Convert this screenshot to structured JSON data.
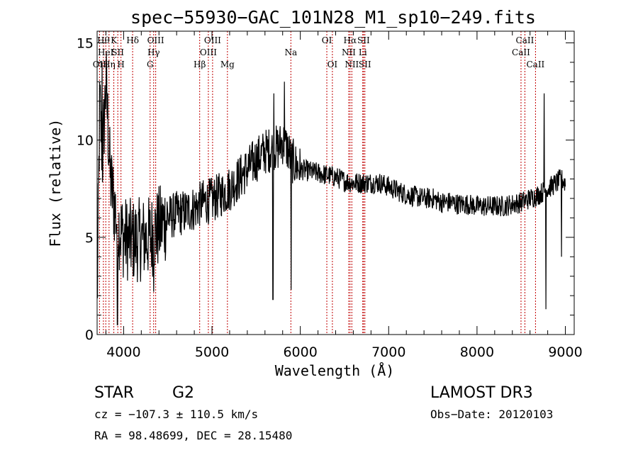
{
  "chart_data": {
    "type": "line",
    "title": "spec−55930−GAC_101N28_M1_sp10−249.fits",
    "xlabel": "Wavelength (Å)",
    "ylabel": "Flux (relative)",
    "xlim": [
      3700,
      9100
    ],
    "ylim": [
      0,
      15.6
    ],
    "xticks": [
      4000,
      5000,
      6000,
      7000,
      8000,
      9000
    ],
    "yticks": [
      0,
      5,
      10,
      15
    ],
    "ytick_labels": [
      "0",
      "5",
      "10",
      "15"
    ],
    "series_anchors": [
      [
        3700,
        1.3
      ],
      [
        3730,
        12
      ],
      [
        3760,
        9
      ],
      [
        3800,
        13
      ],
      [
        3850,
        8
      ],
      [
        3900,
        6.5
      ],
      [
        3950,
        5.5
      ],
      [
        4000,
        5
      ],
      [
        4100,
        4.8
      ],
      [
        4200,
        4.9
      ],
      [
        4300,
        5.0
      ],
      [
        4400,
        5.5
      ],
      [
        4500,
        6.0
      ],
      [
        4600,
        6.2
      ],
      [
        4700,
        6.3
      ],
      [
        4800,
        6.5
      ],
      [
        4900,
        6.8
      ],
      [
        5000,
        6.9
      ],
      [
        5100,
        7.2
      ],
      [
        5200,
        7.5
      ],
      [
        5300,
        8.0
      ],
      [
        5400,
        8.5
      ],
      [
        5500,
        9.0
      ],
      [
        5600,
        9.4
      ],
      [
        5700,
        9.6
      ],
      [
        5750,
        9.6
      ],
      [
        5800,
        9.9
      ],
      [
        5850,
        9.6
      ],
      [
        5900,
        9.0
      ],
      [
        5950,
        8.7
      ],
      [
        6000,
        8.5
      ],
      [
        6100,
        8.4
      ],
      [
        6200,
        8.3
      ],
      [
        6300,
        8.2
      ],
      [
        6400,
        8.1
      ],
      [
        6500,
        7.9
      ],
      [
        6600,
        7.8
      ],
      [
        6700,
        7.8
      ],
      [
        6800,
        7.8
      ],
      [
        6900,
        7.8
      ],
      [
        7000,
        7.6
      ],
      [
        7100,
        7.4
      ],
      [
        7200,
        7.2
      ],
      [
        7300,
        7.1
      ],
      [
        7400,
        7.0
      ],
      [
        7500,
        7.0
      ],
      [
        7600,
        6.8
      ],
      [
        7700,
        6.8
      ],
      [
        7800,
        6.7
      ],
      [
        7900,
        6.7
      ],
      [
        8000,
        6.6
      ],
      [
        8100,
        6.6
      ],
      [
        8200,
        6.6
      ],
      [
        8300,
        6.6
      ],
      [
        8400,
        6.7
      ],
      [
        8500,
        6.8
      ],
      [
        8600,
        7.0
      ],
      [
        8700,
        7.2
      ],
      [
        8800,
        7.5
      ],
      [
        8900,
        7.8
      ],
      [
        8950,
        8.0
      ],
      [
        9000,
        7.8
      ]
    ],
    "absorption_features": [
      {
        "x": 5690,
        "depth_to": 1.8
      },
      {
        "x": 5895,
        "depth_to": 2.3
      },
      {
        "x": 3930,
        "depth_to": 0.5
      },
      {
        "x": 4340,
        "depth_to": 2.2
      },
      {
        "x": 8780,
        "depth_to": 1.3
      },
      {
        "x": 8955,
        "depth_to": 4.0
      },
      {
        "x": 9010,
        "depth_to": 1.5
      }
    ],
    "emission_spikes": [
      {
        "x": 5700,
        "top": 12.4
      },
      {
        "x": 5820,
        "top": 13.0
      },
      {
        "x": 8760,
        "top": 12.4
      },
      {
        "x": 3755,
        "top": 14.0
      }
    ],
    "lines": [
      {
        "x": 3727,
        "label": "OII",
        "row": 3
      },
      {
        "x": 3771,
        "label": "Hθ",
        "row": 1
      },
      {
        "x": 3798,
        "label": "HeI",
        "row": 2
      },
      {
        "x": 3835,
        "label": "Hη",
        "row": 3
      },
      {
        "x": 3889,
        "label": "K",
        "row": 1
      },
      {
        "x": 3934,
        "label": "SII",
        "row": 2
      },
      {
        "x": 3970,
        "label": "H",
        "row": 3
      },
      {
        "x": 4102,
        "label": "Hδ",
        "row": 1
      },
      {
        "x": 4300,
        "label": "G",
        "row": 3
      },
      {
        "x": 4340,
        "label": "Hγ",
        "row": 2
      },
      {
        "x": 4363,
        "label": "OIII",
        "row": 1
      },
      {
        "x": 4861,
        "label": "Hβ",
        "row": 3
      },
      {
        "x": 4959,
        "label": "OIII",
        "row": 2
      },
      {
        "x": 5007,
        "label": "OIII",
        "row": 1
      },
      {
        "x": 5175,
        "label": "Mg",
        "row": 3
      },
      {
        "x": 5893,
        "label": "Na",
        "row": 2
      },
      {
        "x": 6300,
        "label": "OI",
        "row": 1
      },
      {
        "x": 6363,
        "label": "OI",
        "row": 3
      },
      {
        "x": 6548,
        "label": "NII",
        "row": 2
      },
      {
        "x": 6563,
        "label": "Hα",
        "row": 1
      },
      {
        "x": 6583,
        "label": "NII",
        "row": 3
      },
      {
        "x": 6707,
        "label": "Li",
        "row": 2
      },
      {
        "x": 6716,
        "label": "SII",
        "row": 1
      },
      {
        "x": 6731,
        "label": "SII",
        "row": 3
      },
      {
        "x": 8498,
        "label": "CaII",
        "row": 2
      },
      {
        "x": 8542,
        "label": "CaII",
        "row": 1
      },
      {
        "x": 8662,
        "label": "CaII",
        "row": 3
      }
    ]
  },
  "footer": {
    "object_class": "STAR",
    "subclass": "G2",
    "survey": "LAMOST DR3",
    "cz": "cz = −107.3 ± 110.5 km/s",
    "obs_date": "Obs−Date: 20120103",
    "coords": "RA =  98.48699, DEC =  28.15480"
  },
  "colors": {
    "line_marker": "#c00000",
    "spectrum": "#000000",
    "axes": "#000000"
  }
}
